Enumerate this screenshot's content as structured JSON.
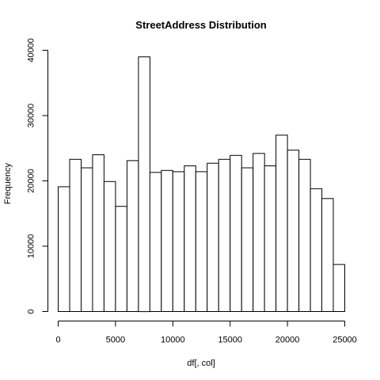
{
  "chart_data": {
    "type": "bar",
    "title": "StreetAddress  Distribution",
    "xlabel": "df[, col]",
    "ylabel": "Frequency",
    "bin_edges": [
      0,
      1000,
      2000,
      3000,
      4000,
      5000,
      6000,
      7000,
      8000,
      9000,
      10000,
      11000,
      12000,
      13000,
      14000,
      15000,
      16000,
      17000,
      18000,
      19000,
      20000,
      21000,
      22000,
      23000,
      24000,
      25000
    ],
    "values": [
      19100,
      23300,
      22000,
      24000,
      19900,
      16100,
      23100,
      39000,
      21300,
      21600,
      21400,
      22300,
      21400,
      22700,
      23300,
      23900,
      22000,
      24200,
      22300,
      27000,
      24700,
      23300,
      18800,
      17300,
      7200
    ],
    "xlim": [
      0,
      25000
    ],
    "ylim": [
      0,
      40000
    ],
    "x_ticks": [
      0,
      5000,
      10000,
      15000,
      20000,
      25000
    ],
    "y_ticks": [
      0,
      10000,
      20000,
      30000,
      40000
    ],
    "grid": false,
    "legend": "none"
  }
}
